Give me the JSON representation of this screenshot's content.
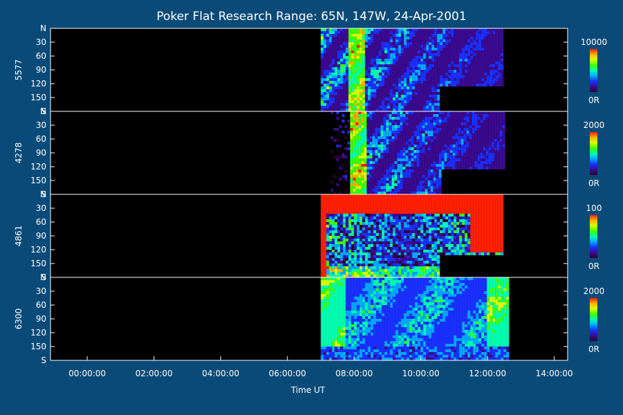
{
  "chart_data": {
    "type": "heatmap",
    "title": "Poker Flat Research Range: 65N, 147W, 24-Apr-2001",
    "xlabel": "Time UT",
    "x_ticks": [
      "00:00:00",
      "02:00:00",
      "04:00:00",
      "06:00:00",
      "08:00:00",
      "10:00:00",
      "12:00:00",
      "14:00:00"
    ],
    "x_tick_hours": [
      0,
      2,
      4,
      6,
      8,
      10,
      12,
      14
    ],
    "xlim_hours": [
      -1.1,
      14.4
    ],
    "y_ticks": [
      "N",
      "30",
      "60",
      "90",
      "120",
      "150",
      "S"
    ],
    "y_tick_values": [
      0,
      30,
      60,
      90,
      120,
      150,
      180
    ],
    "ylim": [
      0,
      180
    ],
    "colors": {
      "background": "#0a4a78",
      "plot_background": "#000000",
      "panel_separator": "#ffffff",
      "colormap": [
        "#2b0030",
        "#3a0a8f",
        "#1a30ff",
        "#00a8ff",
        "#00ffb0",
        "#40ff00",
        "#d8ff00",
        "#ffb000",
        "#ff2000"
      ]
    },
    "panels": [
      {
        "ylabel": "5577",
        "colorbar": {
          "max_label": "10000",
          "min_label": "0R",
          "max": 10000,
          "min": 0
        },
        "data_start_hours": 7.0,
        "data_end_hours": 12.45,
        "blocked_after_hours": 10.55,
        "blocked_from_value": 122,
        "core_hours": [
          7.8,
          8.3
        ],
        "activity": "bright-bands"
      },
      {
        "ylabel": "4278",
        "colorbar": {
          "max_label": "2000",
          "min_label": "0R",
          "max": 2000,
          "min": 0
        },
        "data_start_hours": 7.3,
        "data_end_hours": 12.45,
        "blocked_after_hours": 10.55,
        "blocked_from_value": 122,
        "core_hours": [
          7.8,
          8.3
        ],
        "activity": "narrow-bands"
      },
      {
        "ylabel": "4861",
        "colorbar": {
          "max_label": "100",
          "min_label": "0R",
          "max": 100,
          "min": 0
        },
        "data_start_hours": 7.0,
        "data_end_hours": 12.45,
        "blocked_after_hours": 10.55,
        "blocked_from_value": 130,
        "core_hours": [
          7.0,
          12.45
        ],
        "activity": "saturated-noise"
      },
      {
        "ylabel": "6300",
        "colorbar": {
          "max_label": "2000",
          "min_label": "0R",
          "max": 2000,
          "min": 0
        },
        "data_start_hours": 7.0,
        "data_end_hours": 12.6,
        "blocked_after_hours": null,
        "blocked_from_value": null,
        "core_hours": [
          7.0,
          12.6
        ],
        "activity": "diffuse-glow"
      }
    ]
  }
}
